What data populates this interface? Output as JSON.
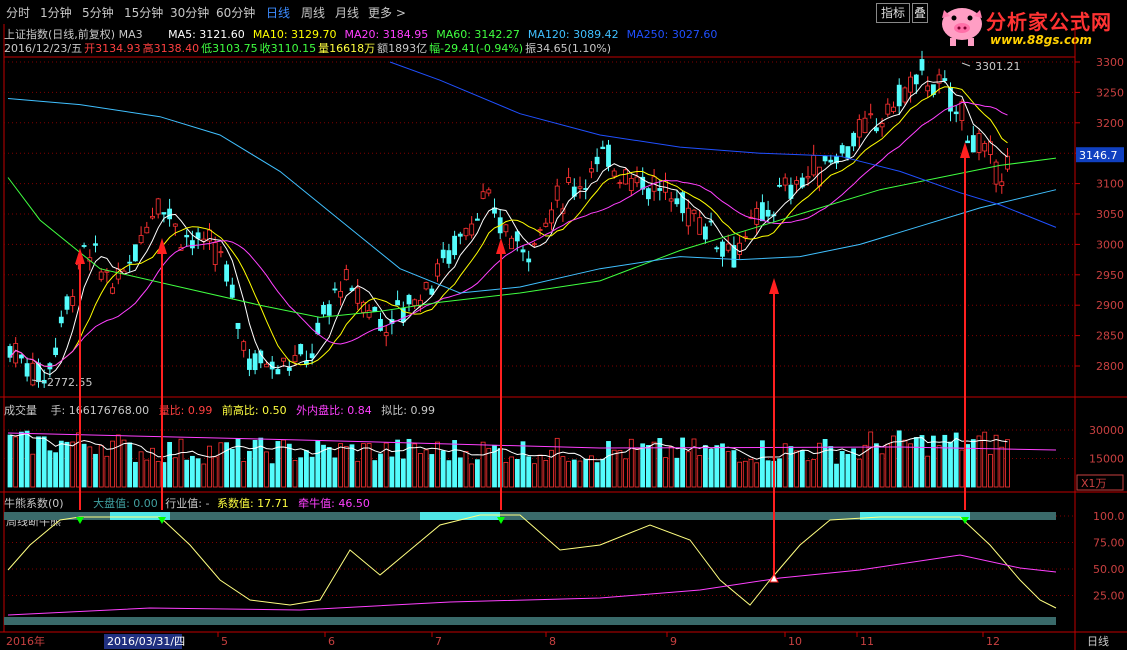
{
  "toolbar": {
    "tabs": [
      {
        "label": "分时",
        "active": false
      },
      {
        "label": "1分钟",
        "active": false
      },
      {
        "label": "5分钟",
        "active": false
      },
      {
        "label": "15分钟",
        "active": false
      },
      {
        "label": "30分钟",
        "active": false
      },
      {
        "label": "60分钟",
        "active": false
      },
      {
        "label": "日线",
        "active": true
      },
      {
        "label": "周线",
        "active": false
      },
      {
        "label": "月线",
        "active": false
      },
      {
        "label": "更多 >",
        "active": false
      }
    ],
    "indicator_button": "指标",
    "other_button": "叠"
  },
  "brand": {
    "name": "分析家公式网",
    "url": "www.88gs.com"
  },
  "price_panel": {
    "title": "上证指数(日线,前复权) MA3",
    "ma": [
      {
        "label": "MA5: 3121.60",
        "color": "#ffffff"
      },
      {
        "label": "MA10: 3129.70",
        "color": "#ffff00"
      },
      {
        "label": "MA20: 3184.95",
        "color": "#ff40ff"
      },
      {
        "label": "MA60: 3142.27",
        "color": "#40ff40"
      },
      {
        "label": "MA120: 3089.42",
        "color": "#40c0ff"
      },
      {
        "label": "MA250: 3027.60",
        "color": "#2050ff"
      }
    ],
    "quote": {
      "date": "2016/12/23/五",
      "open": "开3134.93",
      "high": "高3138.40",
      "low": "低3103.75",
      "close": "收3110.15",
      "volume": "量16618万",
      "amount": "额1893亿",
      "change": "幅-29.41(-0.94%)",
      "amplitude": "振34.65(1.10%)"
    },
    "y_ticks": [
      "3300",
      "3250",
      "3200",
      "3150",
      "3100",
      "3050",
      "3000",
      "2950",
      "2900",
      "2850",
      "2800"
    ],
    "current_price": "3146.7",
    "high_label": "3301.21",
    "low_label": "2772.55"
  },
  "volume_panel": {
    "title": "成交量",
    "hand": "手: 166176768.00",
    "ratio": "量比: 0.99",
    "prev_high_ratio": "前高比: 0.50",
    "in_out_ratio": "外内盘比: 0.84",
    "sim_ratio": "拟比: 0.99",
    "y_ticks": [
      "30000",
      "15000"
    ],
    "unit": "X1万"
  },
  "indicator_panel": {
    "name": "牛熊系数(0)",
    "subtitle": "周线断牛熊",
    "market_value": "大盘值: 0.00",
    "industry_value": "行业值: -",
    "coef_value": "系数值: 17.71",
    "bull_value": "牵牛值: 46.50",
    "y_ticks": [
      "100.0",
      "75.00",
      "50.00",
      "25.00"
    ]
  },
  "date_axis": {
    "year": "2016年",
    "cursor_date": "2016/03/31/四",
    "months": [
      "5",
      "6",
      "7",
      "8",
      "9",
      "10",
      "11",
      "12"
    ],
    "period": "日线"
  },
  "colors": {
    "up": "#ff3232",
    "down": "#54fcfc",
    "grid": "#800000",
    "axis": "#c00000",
    "arrow_red": "#ff2020",
    "arrow_green": "#00ff00"
  }
}
